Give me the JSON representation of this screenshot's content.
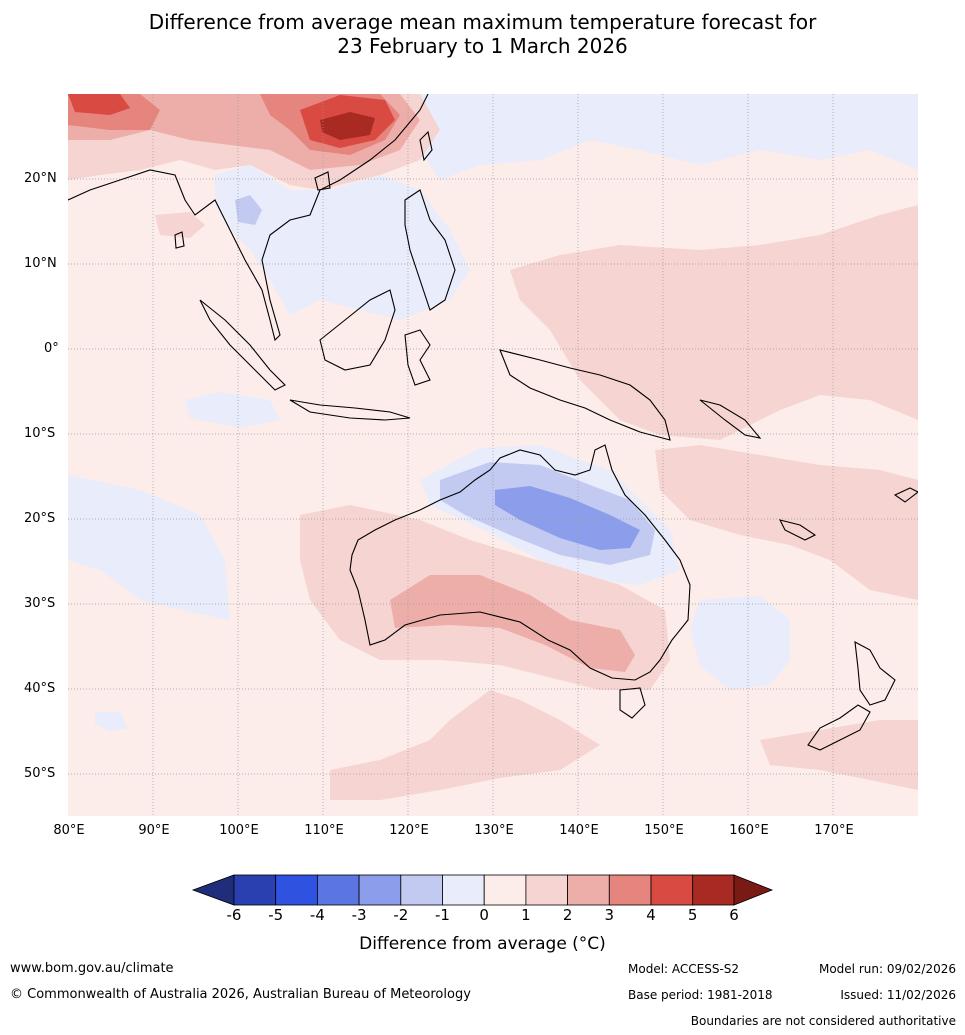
{
  "title": {
    "line1": "Difference from average mean maximum temperature forecast for",
    "line2": "23 February to 1 March 2026"
  },
  "map": {
    "latitude_labels": [
      "20°N",
      "10°N",
      "0°",
      "10°S",
      "20°S",
      "30°S",
      "40°S",
      "50°S"
    ],
    "longitude_labels": [
      "80°E",
      "90°E",
      "100°E",
      "110°E",
      "120°E",
      "130°E",
      "140°E",
      "150°E",
      "160°E",
      "170°E"
    ],
    "colors": {
      "neg6": "#1f2d7a",
      "neg5": "#2a3fb0",
      "neg4": "#2f52e0",
      "neg3": "#5b76e0",
      "neg2": "#8b9deb",
      "neg1": "#c2caf2",
      "neg0": "#e9ecfb",
      "pos0": "#fcecea",
      "pos1": "#f5d4d2",
      "pos2": "#edaeaa",
      "pos3": "#e6847e",
      "pos4": "#d94a42",
      "pos5": "#a82a22",
      "pos6": "#7a1a14"
    }
  },
  "colorbar": {
    "ticks": [
      "-6",
      "-5",
      "-4",
      "-3",
      "-2",
      "-1",
      "0",
      "1",
      "2",
      "3",
      "4",
      "5",
      "6"
    ],
    "label": "Difference from average (°C)"
  },
  "footer": {
    "website": "www.bom.gov.au/climate",
    "copyright": "© Commonwealth of Australia 2026, Australian Bureau of Meteorology",
    "model": "Model: ACCESS-S2",
    "base_period": "Base period: 1981-2018",
    "model_run": "Model run: 09/02/2026",
    "issued": "Issued: 11/02/2026",
    "disclaimer": "Boundaries are not considered authoritative"
  }
}
